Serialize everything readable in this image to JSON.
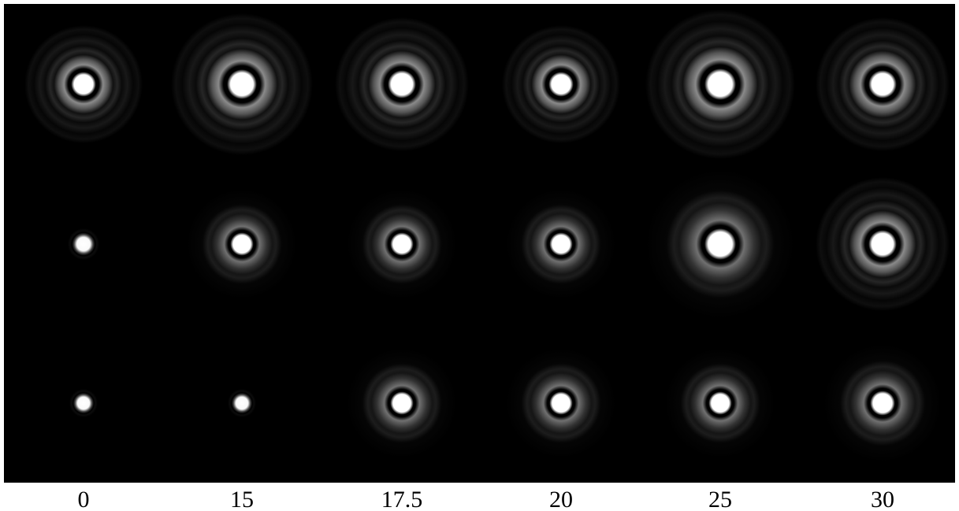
{
  "labels": [
    "0",
    "15",
    "17.5",
    "20",
    "25",
    "30"
  ]
}
